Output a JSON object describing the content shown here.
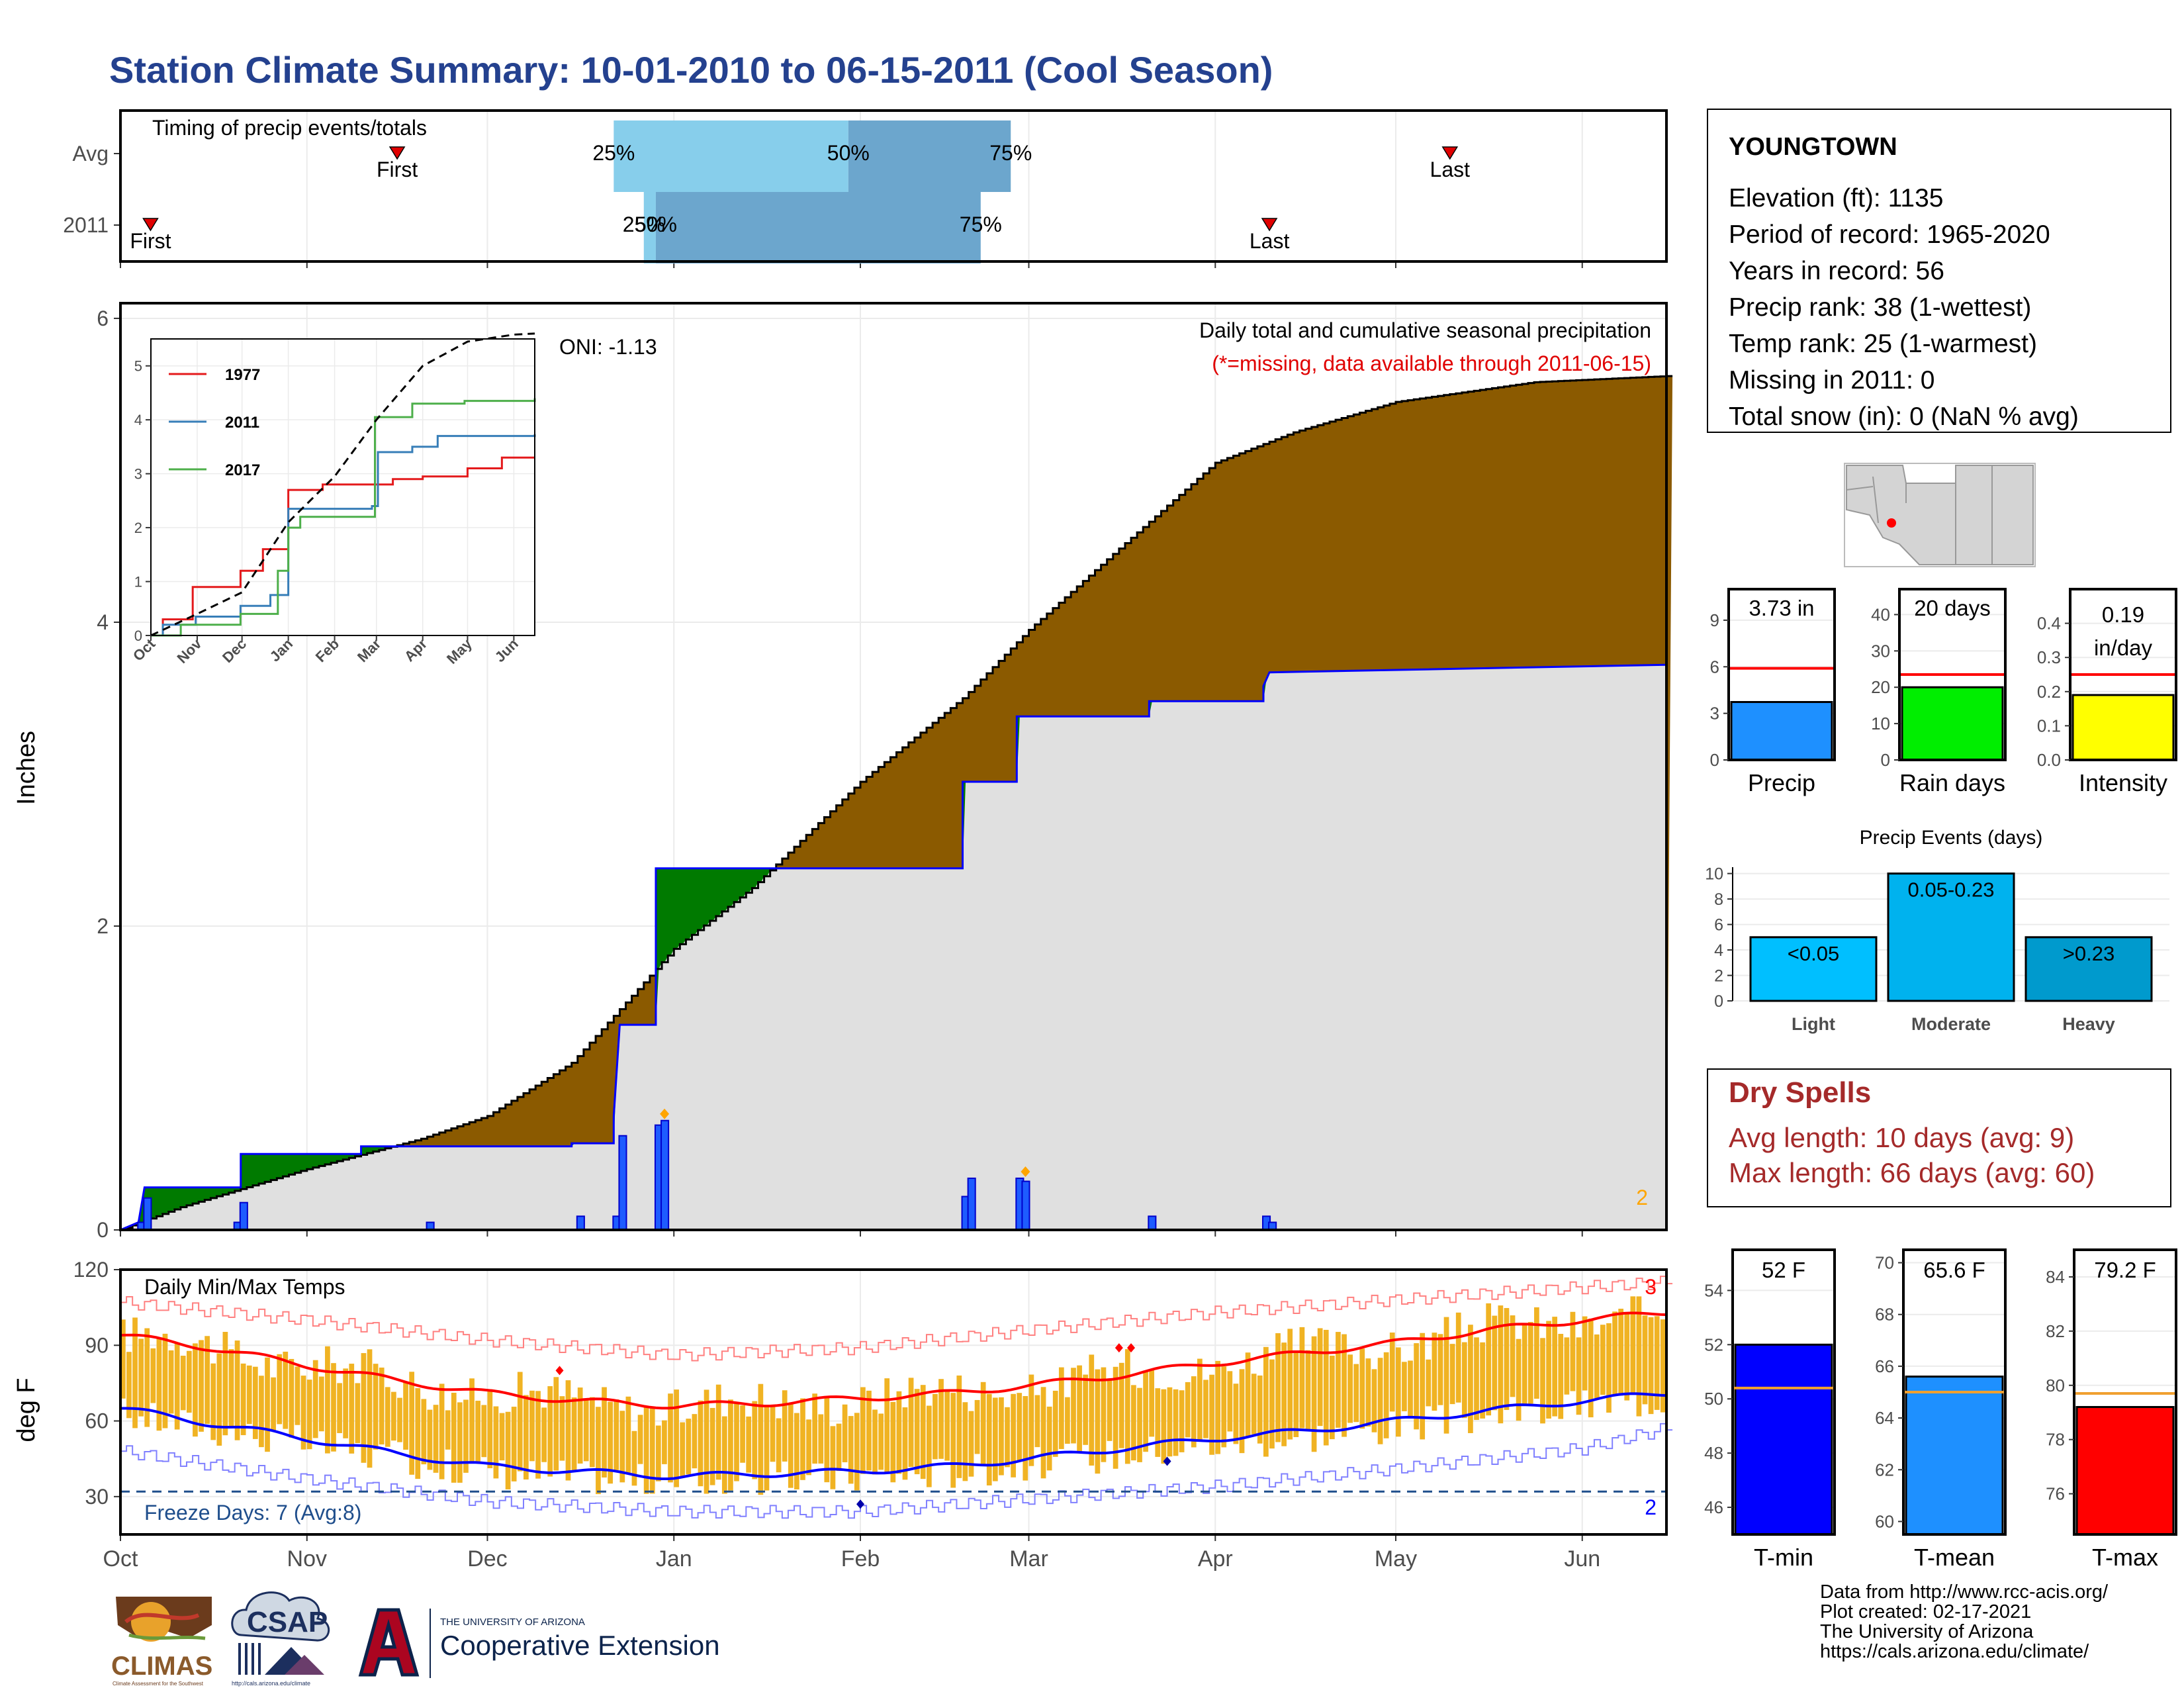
{
  "title": "Station Climate Summary: 10-01-2010 to 06-15-2011 (Cool Season)",
  "timing": {
    "caption": "Timing of precip events/totals",
    "rows": [
      {
        "label": "Avg",
        "first": "First",
        "last": "Last",
        "p25": "25%",
        "p50": "50%",
        "p75": "75%"
      },
      {
        "label": "2011",
        "first": "First",
        "last": "Last",
        "p25": "25%",
        "p50": "50%",
        "p75": "75%"
      }
    ]
  },
  "precip_panel": {
    "ylabel": "Inches",
    "yticks": [
      "0",
      "2",
      "4",
      "6"
    ],
    "caption": "Daily total and cumulative seasonal precipitation",
    "missing_note": "(*=missing, data available through 2011-06-15)",
    "oni": "ONI: -1.13",
    "corner_count": "2"
  },
  "inset": {
    "yticks": [
      "0",
      "1",
      "2",
      "3",
      "4",
      "5"
    ],
    "xticks": [
      "Oct",
      "Nov",
      "Dec",
      "Jan",
      "Feb",
      "Mar",
      "Apr",
      "May",
      "Jun"
    ],
    "legend": [
      {
        "year": "1977",
        "color": "#e41a1c"
      },
      {
        "year": "2011",
        "color": "#377eb8"
      },
      {
        "year": "2017",
        "color": "#4daf4a"
      }
    ]
  },
  "temp_panel": {
    "ylabel": "deg F",
    "caption": "Daily Min/Max Temps",
    "yticks": [
      "30",
      "60",
      "90",
      "120"
    ],
    "freeze_text": "Freeze Days: 7 (Avg:8)",
    "count_high": "3",
    "count_low": "2"
  },
  "months": [
    "Oct",
    "Nov",
    "Dec",
    "Jan",
    "Feb",
    "Mar",
    "Apr",
    "May",
    "Jun"
  ],
  "station": {
    "name": "YOUNGTOWN",
    "lines": [
      "Elevation (ft): 1135",
      "Period of record: 1965-2020",
      "Years in record: 56",
      "Precip rank: 38 (1-wettest)",
      "Temp rank: 25 (1-warmest)",
      "Missing in 2011: 0",
      "Total snow (in): 0 (NaN % avg)"
    ]
  },
  "mini_bars": [
    {
      "label": "Precip",
      "value_text": "3.73 in",
      "value": 3.73,
      "avg": 5.9,
      "ymax": 11,
      "ticks": [
        "0",
        "3",
        "6",
        "9"
      ],
      "color": "#1e90ff"
    },
    {
      "label": "Rain days",
      "value_text": "20 days",
      "value": 20,
      "avg": 23.5,
      "ymax": 47,
      "ticks": [
        "0",
        "10",
        "20",
        "30",
        "40"
      ],
      "color": "#00ee00"
    },
    {
      "label": "Intensity",
      "value_text": "0.19 in/day",
      "value": 0.19,
      "avg": 0.25,
      "ymax": 0.5,
      "ticks": [
        "0.0",
        "0.1",
        "0.2",
        "0.3",
        "0.4"
      ],
      "color": "#ffff00"
    }
  ],
  "events": {
    "title": "Precip Events (days)",
    "ticks": [
      "0",
      "2",
      "4",
      "6",
      "8",
      "10"
    ],
    "bars": [
      {
        "cat": "Light",
        "label": "<0.05",
        "value": 5,
        "color": "#00bfff"
      },
      {
        "cat": "Moderate",
        "label": "0.05-0.23",
        "value": 10,
        "color": "#00b2ee"
      },
      {
        "cat": "Heavy",
        "label": ">0.23",
        "value": 5,
        "color": "#009acd"
      }
    ]
  },
  "dry_spells": {
    "title": "Dry Spells",
    "line1": "Avg length: 10 days (avg: 9)",
    "line2": "Max length: 66 days (avg: 60)"
  },
  "temp_bars": [
    {
      "label": "T-min",
      "value_text": "52 F",
      "value": 52,
      "avg": 50.4,
      "ymin": 45,
      "ymax": 55.5,
      "ticks": [
        "46",
        "48",
        "50",
        "52",
        "54"
      ],
      "color": "#0000ff"
    },
    {
      "label": "T-mean",
      "value_text": "65.6 F",
      "value": 65.6,
      "avg": 65,
      "ymin": 59.5,
      "ymax": 70.5,
      "ticks": [
        "60",
        "62",
        "64",
        "66",
        "68",
        "70"
      ],
      "color": "#1e90ff"
    },
    {
      "label": "T-max",
      "value_text": "79.2 F",
      "value": 79.2,
      "avg": 79.7,
      "ymin": 74.5,
      "ymax": 85,
      "ticks": [
        "76",
        "78",
        "80",
        "82",
        "84"
      ],
      "color": "#ff0000"
    }
  ],
  "logos": {
    "climas": "CLIMAS",
    "climas_sub": "Climate Assessment for the Southwest",
    "csap": "CSAP",
    "csap_url": "http://cals.arizona.edu/climate",
    "ua_small": "THE UNIVERSITY OF ARIZONA",
    "ua_big": "Cooperative Extension"
  },
  "footer": [
    "Data from http://www.rcc-acis.org/",
    "Plot created: 02-17-2021",
    "The University of Arizona",
    "https://cals.arizona.edu/climate/"
  ],
  "chart_data": [
    {
      "type": "bar",
      "panel": "timing",
      "categories": [
        "Avg",
        "2011"
      ],
      "series": [
        {
          "name": "Avg",
          "first": "Nov 16",
          "p25": "Dec 22",
          "p50": "Jan 30",
          "p75": "Feb 26",
          "last": "May 10"
        },
        {
          "name": "2011",
          "first": "Oct 6",
          "p25": "Dec 27",
          "p50": "Dec 29",
          "p75": "Feb 21",
          "last": "Apr 10"
        }
      ]
    },
    {
      "type": "area",
      "panel": "precipitation",
      "title": "Daily total and cumulative seasonal precipitation",
      "ylabel": "Inches",
      "ylim": [
        0,
        6.1
      ],
      "x_range": [
        "2010-10-01",
        "2011-06-15"
      ],
      "avg_cumulative": [
        [
          0,
          0
        ],
        [
          10,
          0.15
        ],
        [
          31,
          0.4
        ],
        [
          50,
          0.6
        ],
        [
          61,
          0.75
        ],
        [
          75,
          1.1
        ],
        [
          92,
          1.85
        ],
        [
          105,
          2.25
        ],
        [
          123,
          2.95
        ],
        [
          140,
          3.5
        ],
        [
          151,
          3.95
        ],
        [
          165,
          4.45
        ],
        [
          182,
          5.05
        ],
        [
          195,
          5.25
        ],
        [
          212,
          5.45
        ],
        [
          235,
          5.58
        ],
        [
          257,
          5.62
        ]
      ],
      "season_cumulative": [
        [
          0,
          0
        ],
        [
          3,
          0.05
        ],
        [
          4,
          0.28
        ],
        [
          20,
          0.28
        ],
        [
          20,
          0.5
        ],
        [
          40,
          0.5
        ],
        [
          40,
          0.55
        ],
        [
          75,
          0.55
        ],
        [
          75,
          0.57
        ],
        [
          82,
          0.57
        ],
        [
          82,
          0.61
        ],
        [
          82,
          0.75
        ],
        [
          83,
          1.35
        ],
        [
          89,
          1.35
        ],
        [
          89,
          2.38
        ],
        [
          92,
          2.38
        ],
        [
          140,
          2.38
        ],
        [
          140,
          2.95
        ],
        [
          149,
          2.95
        ],
        [
          149,
          3.38
        ],
        [
          171,
          3.38
        ],
        [
          171,
          3.48
        ],
        [
          190,
          3.48
        ],
        [
          190,
          3.58
        ],
        [
          191,
          3.67
        ],
        [
          257,
          3.72
        ]
      ],
      "daily_bars": [
        [
          3,
          0.05
        ],
        [
          4,
          0.21
        ],
        [
          19,
          0.05
        ],
        [
          20,
          0.18
        ],
        [
          51,
          0.05
        ],
        [
          76,
          0.09
        ],
        [
          82,
          0.09
        ],
        [
          83,
          0.62
        ],
        [
          89,
          0.69
        ],
        [
          90,
          0.72
        ],
        [
          140,
          0.22
        ],
        [
          141,
          0.34
        ],
        [
          149,
          0.34
        ],
        [
          150,
          0.32
        ],
        [
          171,
          0.09
        ],
        [
          190,
          0.09
        ],
        [
          191,
          0.05
        ]
      ],
      "markers": [
        [
          90,
          0.72
        ],
        [
          150,
          0.34
        ]
      ],
      "oni": -1.13
    },
    {
      "type": "line",
      "panel": "inset",
      "ylim": [
        0,
        5.5
      ],
      "x": [
        "Oct",
        "Nov",
        "Dec",
        "Jan",
        "Feb",
        "Mar",
        "Apr",
        "May",
        "Jun"
      ],
      "series": [
        {
          "name": "1977",
          "values": [
            [
              0,
              0
            ],
            [
              8,
              0.3
            ],
            [
              28,
              0.9
            ],
            [
              60,
              1.2
            ],
            [
              75,
              1.6
            ],
            [
              92,
              2.7
            ],
            [
              115,
              2.8
            ],
            [
              150,
              2.8
            ],
            [
              162,
              2.9
            ],
            [
              182,
              2.95
            ],
            [
              212,
              3.1
            ],
            [
              235,
              3.3
            ],
            [
              257,
              3.3
            ]
          ]
        },
        {
          "name": "2011",
          "values": [
            [
              0,
              0
            ],
            [
              8,
              0.2
            ],
            [
              30,
              0.35
            ],
            [
              60,
              0.55
            ],
            [
              80,
              0.75
            ],
            [
              92,
              2.35
            ],
            [
              148,
              2.4
            ],
            [
              152,
              3.4
            ],
            [
              175,
              3.5
            ],
            [
              192,
              3.7
            ],
            [
              257,
              3.73
            ]
          ]
        },
        {
          "name": "2017",
          "values": [
            [
              0,
              0
            ],
            [
              20,
              0.2
            ],
            [
              60,
              0.4
            ],
            [
              85,
              1.2
            ],
            [
              92,
              2.0
            ],
            [
              100,
              2.2
            ],
            [
              145,
              2.2
            ],
            [
              150,
              4.05
            ],
            [
              175,
              4.3
            ],
            [
              210,
              4.35
            ],
            [
              257,
              4.4
            ]
          ]
        },
        {
          "name": "Avg",
          "values": [
            [
              0,
              0
            ],
            [
              31,
              0.4
            ],
            [
              61,
              0.8
            ],
            [
              92,
              2.1
            ],
            [
              123,
              2.95
            ],
            [
              151,
              4.0
            ],
            [
              182,
              5.0
            ],
            [
              212,
              5.45
            ],
            [
              243,
              5.58
            ],
            [
              257,
              5.6
            ]
          ]
        }
      ]
    },
    {
      "type": "bar",
      "panel": "temperature",
      "title": "Daily Min/Max Temps",
      "ylabel": "deg F",
      "ylim": [
        15,
        120
      ],
      "x_range": [
        "2010-10-01",
        "2011-06-15"
      ],
      "avg_max": [
        [
          0,
          94
        ],
        [
          15,
          89
        ],
        [
          31,
          82
        ],
        [
          46,
          76
        ],
        [
          61,
          71
        ],
        [
          76,
          68
        ],
        [
          92,
          66
        ],
        [
          107,
          67
        ],
        [
          123,
          69
        ],
        [
          138,
          71
        ],
        [
          151,
          74
        ],
        [
          166,
          78
        ],
        [
          182,
          83
        ],
        [
          197,
          87
        ],
        [
          212,
          91
        ],
        [
          227,
          96
        ],
        [
          243,
          100
        ],
        [
          257,
          103
        ]
      ],
      "avg_min": [
        [
          0,
          65
        ],
        [
          15,
          59
        ],
        [
          31,
          53
        ],
        [
          46,
          47
        ],
        [
          61,
          42
        ],
        [
          76,
          40
        ],
        [
          92,
          38
        ],
        [
          107,
          39
        ],
        [
          123,
          40
        ],
        [
          138,
          42
        ],
        [
          151,
          45
        ],
        [
          166,
          49
        ],
        [
          182,
          53
        ],
        [
          197,
          56
        ],
        [
          212,
          60
        ],
        [
          227,
          64
        ],
        [
          243,
          68
        ],
        [
          257,
          71
        ]
      ],
      "record_high": [
        [
          0,
          107
        ],
        [
          31,
          100
        ],
        [
          61,
          92
        ],
        [
          92,
          86
        ],
        [
          123,
          89
        ],
        [
          151,
          96
        ],
        [
          182,
          103
        ],
        [
          212,
          108
        ],
        [
          243,
          113
        ],
        [
          257,
          115
        ]
      ],
      "record_low": [
        [
          0,
          48
        ],
        [
          31,
          37
        ],
        [
          61,
          28
        ],
        [
          92,
          24
        ],
        [
          123,
          24
        ],
        [
          151,
          29
        ],
        [
          182,
          34
        ],
        [
          212,
          41
        ],
        [
          243,
          49
        ],
        [
          257,
          57
        ]
      ],
      "freeze_line": 32,
      "freeze_days": 7,
      "record_high_days": 3,
      "record_low_days": 2
    }
  ]
}
